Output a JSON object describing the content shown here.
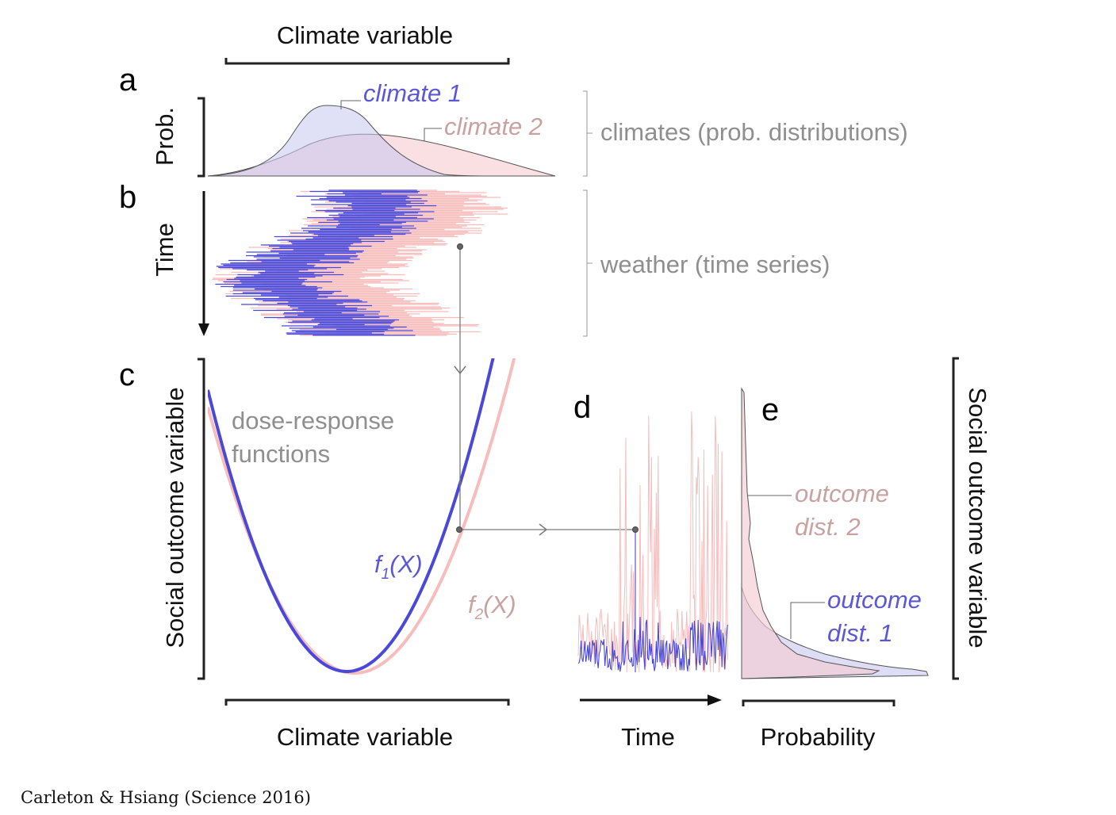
{
  "panels": {
    "a": "a",
    "b": "b",
    "c": "c",
    "d": "d",
    "e": "e"
  },
  "axes": {
    "top_x": "Climate variable",
    "prob_y": "Prob.",
    "time_y": "Time",
    "social_y_left": "Social outcome variable",
    "bottom_x": "Climate variable",
    "time_x": "Time",
    "prob_x": "Probability",
    "social_y_right": "Social outcome variable"
  },
  "labels": {
    "climate_1": "climate 1",
    "climate_2": "climate 2",
    "climates_desc": "climates (prob. distributions)",
    "weather_desc": "weather (time series)",
    "dose_response_line1": "dose-response",
    "dose_response_line2": "functions",
    "f1_letter": "f",
    "f1_sub": "1",
    "f1_arg": "(X)",
    "f2_letter": "f",
    "f2_sub": "2",
    "f2_arg": "(X)",
    "outcome2_line1": "outcome",
    "outcome2_line2": "dist. 2",
    "outcome1_line1": "outcome",
    "outcome1_line2": "dist. 1"
  },
  "citation": "Carleton & Hsiang (Science 2016)",
  "colors": {
    "series1": "#4a48d8",
    "series2": "#f7bcbc",
    "series1_label": "#5b58d6",
    "series2_label": "#c9a1a1",
    "gray_text": "#8f8f8f",
    "connector": "#7a7a7a"
  }
}
